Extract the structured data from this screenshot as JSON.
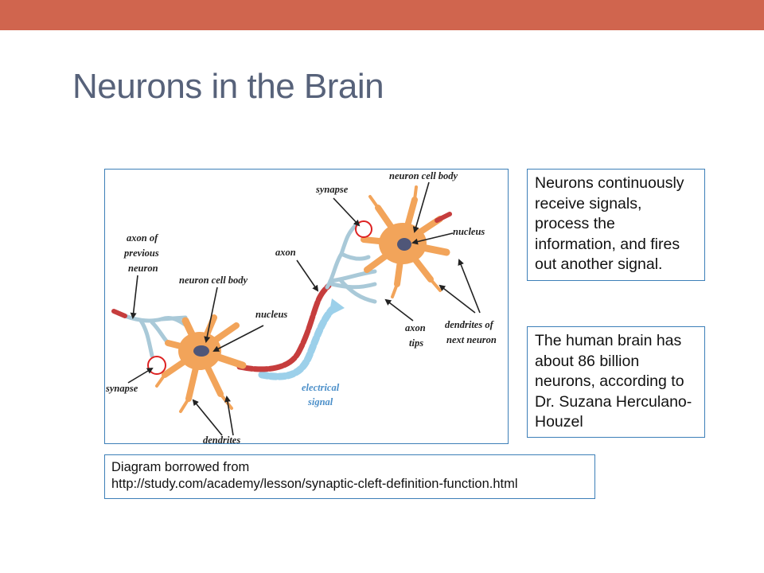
{
  "theme": {
    "accent": "#d0654e",
    "title_color": "#57627a",
    "box_border": "#3d7fb8"
  },
  "slide": {
    "title": "Neurons in the Brain"
  },
  "diagram": {
    "labels": {
      "axon_of_previous_neuron": [
        "axon of",
        "previous",
        "neuron"
      ],
      "neuron_cell_body_left": "neuron cell body",
      "nucleus_left": "nucleus",
      "synapse_left": "synapse",
      "dendrites": "dendrites",
      "electrical_signal": [
        "electrical",
        "signal"
      ],
      "axon": "axon",
      "synapse_top": "synapse",
      "neuron_cell_body_right": "neuron cell body",
      "nucleus_right": "nucleus",
      "axon_tips": [
        "axon",
        "tips"
      ],
      "dendrites_of_next_neuron": [
        "dendrites of",
        "next neuron"
      ]
    }
  },
  "callouts": [
    {
      "text": "Neurons continuously receive signals, process the information, and fires out another signal."
    },
    {
      "text": "The human brain has about 86 billion neurons, according to Dr. Suzana Herculano-Houzel"
    }
  ],
  "credit": {
    "line1": "Diagram borrowed from",
    "line2": "http://study.com/academy/lesson/synaptic-cleft-definition-function.html"
  }
}
